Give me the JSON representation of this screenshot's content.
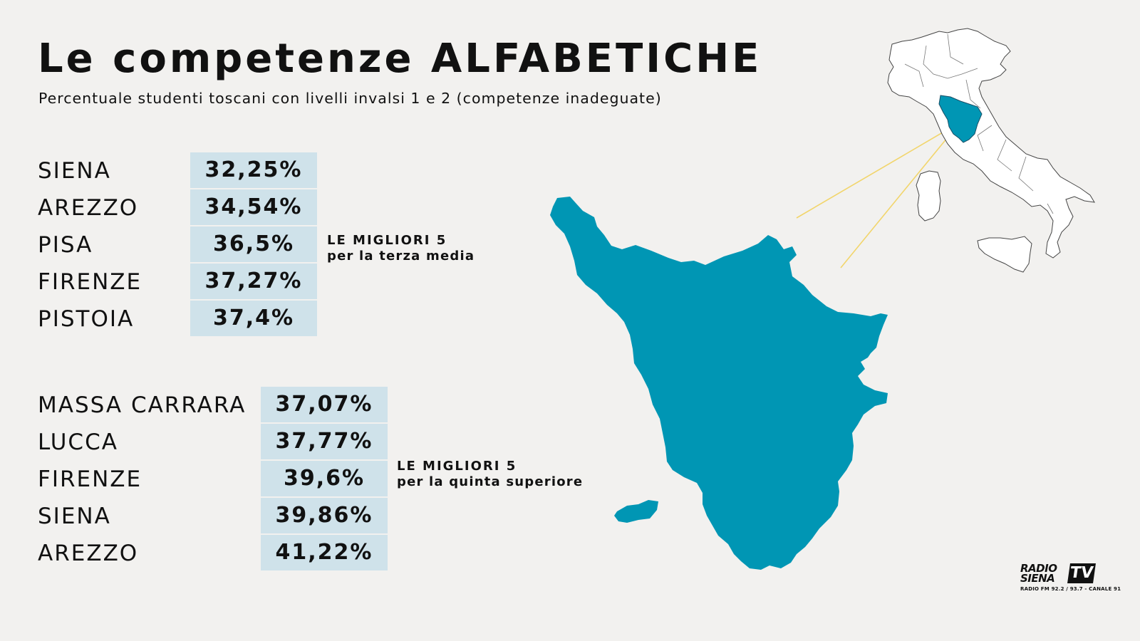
{
  "header": {
    "title": "Le competenze ALFABETICHE",
    "subtitle": "Percentuale studenti toscani con livelli invalsi 1 e 2 (competenze inadeguate)"
  },
  "groups": [
    {
      "note_line1": "LE MIGLIORI 5",
      "note_line2": "per la terza media",
      "rows": [
        {
          "label": "SIENA",
          "value": "32,25%"
        },
        {
          "label": "AREZZO",
          "value": "34,54%"
        },
        {
          "label": "PISA",
          "value": "36,5%"
        },
        {
          "label": "FIRENZE",
          "value": "37,27%"
        },
        {
          "label": "PISTOIA",
          "value": "37,4%"
        }
      ]
    },
    {
      "note_line1": "LE MIGLIORI 5",
      "note_line2": "per la quinta superiore",
      "rows": [
        {
          "label": "MASSA CARRARA",
          "value": "37,07%"
        },
        {
          "label": "LUCCA",
          "value": "37,77%"
        },
        {
          "label": "FIRENZE",
          "value": "39,6%"
        },
        {
          "label": "SIENA",
          "value": "39,86%"
        },
        {
          "label": "AREZZO",
          "value": "41,22%"
        }
      ]
    }
  ],
  "chart_data": {
    "type": "table",
    "title": "Le competenze ALFABETICHE",
    "subtitle": "Percentuale studenti toscani con livelli invalsi 1 e 2 (competenze inadeguate)",
    "tables": [
      {
        "name": "per la terza media",
        "categories": [
          "SIENA",
          "AREZZO",
          "PISA",
          "FIRENZE",
          "PISTOIA"
        ],
        "values": [
          32.25,
          34.54,
          36.5,
          37.27,
          37.4
        ]
      },
      {
        "name": "per la quinta superiore",
        "categories": [
          "MASSA CARRARA",
          "LUCCA",
          "FIRENZE",
          "SIENA",
          "AREZZO"
        ],
        "values": [
          37.07,
          37.77,
          39.6,
          39.86,
          41.22
        ]
      }
    ]
  },
  "colors": {
    "background": "#f2f1ef",
    "map_fill": "#0096b4",
    "cell_bg": "#cfe2ea",
    "connector": "#f2d56b",
    "text": "#111111"
  },
  "logo": {
    "line1": "RADIO",
    "line2": "SIENA",
    "badge": "TV",
    "tagline": "RADIO FM 92.2 / 93.7 - CANALE 91"
  }
}
